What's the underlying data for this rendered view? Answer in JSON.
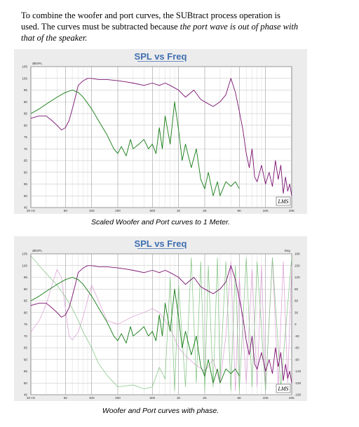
{
  "intro": {
    "line1": "To combine the woofer and port curves,  the SUBtract process operation is",
    "line2a": "used.  The curves must be subtracted because ",
    "line2b": "the port wave is out of phase with",
    "line3": "that of the speaker."
  },
  "chart_data": [
    {
      "type": "line",
      "title": "SPL vs Freq",
      "ylabel": "dBSPL",
      "xscale": "log",
      "xlim": [
        20,
        20000
      ],
      "ylim": [
        45,
        105
      ],
      "grid": true,
      "x_ticks": [
        20,
        50,
        100,
        200,
        500,
        1000,
        2000,
        5000,
        10000,
        20000
      ],
      "x_tick_labels": [
        "20 Hz",
        "50",
        "100",
        "200",
        "500",
        "1K",
        "2K",
        "5K",
        "10K",
        "20K"
      ],
      "y_ticks": [
        45,
        50,
        55,
        60,
        65,
        70,
        75,
        80,
        85,
        90,
        95,
        100,
        105
      ],
      "watermark": "LMS",
      "caption": "Scaled Woofer and Port curves to 1 Meter.",
      "series": [
        {
          "color": "#7a1070",
          "x": [
            20,
            25,
            30,
            35,
            40,
            45,
            50,
            55,
            60,
            65,
            70,
            80,
            90,
            100,
            120,
            150,
            200,
            250,
            300,
            400,
            500,
            600,
            700,
            800,
            1000,
            1200,
            1500,
            1800,
            2000,
            2500,
            3000,
            3500,
            4000,
            4500,
            5000,
            5500,
            6000,
            6500,
            7000,
            7500,
            8000,
            9000,
            10000,
            11000,
            12000,
            13000,
            14000,
            15000,
            16000,
            17000,
            18000,
            19000,
            20000
          ],
          "y": [
            83,
            84,
            84,
            82,
            80,
            78,
            79,
            82,
            87,
            92,
            97,
            99,
            100,
            100,
            99.5,
            99.5,
            99,
            98.5,
            98,
            97,
            98,
            97,
            98,
            97,
            95,
            92,
            95,
            91,
            90,
            88,
            90,
            93,
            100,
            94,
            86,
            78,
            68,
            62,
            70,
            58,
            56,
            63,
            55,
            60,
            54,
            65,
            57,
            63,
            51,
            58,
            52,
            55,
            50
          ]
        },
        {
          "color": "#137c13",
          "x": [
            20,
            25,
            30,
            40,
            50,
            60,
            70,
            80,
            100,
            120,
            150,
            180,
            200,
            220,
            250,
            280,
            300,
            350,
            400,
            450,
            500,
            550,
            600,
            650,
            700,
            800,
            900,
            1000,
            1100,
            1200,
            1400,
            1600,
            1800,
            2000,
            2200,
            2500,
            2800,
            3000,
            3500,
            4000,
            4500,
            5000
          ],
          "y": [
            85,
            87,
            89,
            92,
            94,
            95,
            94,
            92,
            87,
            82,
            76,
            70,
            68,
            71,
            67,
            74,
            70,
            72,
            74,
            70,
            72,
            68,
            79,
            70,
            84,
            72,
            90,
            78,
            65,
            72,
            62,
            70,
            57,
            53,
            60,
            50,
            56,
            50,
            56,
            54,
            56,
            53
          ]
        }
      ]
    },
    {
      "type": "line",
      "title": "SPL vs Freq",
      "ylabel": "dBSPL",
      "y2label": "Deg",
      "xscale": "log",
      "xlim": [
        20,
        20000
      ],
      "ylim": [
        45,
        105
      ],
      "y2lim": [
        -180,
        180
      ],
      "grid": true,
      "x_ticks": [
        20,
        50,
        100,
        200,
        500,
        1000,
        2000,
        5000,
        10000,
        20000
      ],
      "x_tick_labels": [
        "20 Hz",
        "50",
        "100",
        "200",
        "500",
        "1K",
        "2K",
        "5K",
        "10K",
        "20K"
      ],
      "y_ticks": [
        45,
        50,
        55,
        60,
        65,
        70,
        75,
        80,
        85,
        90,
        95,
        100,
        105
      ],
      "y2_ticks": [
        180,
        150,
        120,
        90,
        60,
        30,
        0,
        -30,
        -60,
        -90,
        -120,
        -150,
        -180
      ],
      "y2_tick_labels": [
        "180",
        "150",
        "120",
        "90",
        "60",
        "30",
        "0",
        "-30",
        "-60",
        "-90",
        "-120",
        "-150",
        "-180"
      ],
      "watermark": "LMS",
      "caption": "Woofer and Port curves with phase.",
      "series": [
        {
          "color": "#7a1070",
          "x": [
            20,
            25,
            30,
            35,
            40,
            45,
            50,
            55,
            60,
            65,
            70,
            80,
            90,
            100,
            120,
            150,
            200,
            250,
            300,
            400,
            500,
            600,
            700,
            800,
            1000,
            1200,
            1500,
            1800,
            2000,
            2500,
            3000,
            3500,
            4000,
            4500,
            5000,
            5500,
            6000,
            6500,
            7000,
            7500,
            8000,
            9000,
            10000,
            11000,
            12000,
            13000,
            14000,
            15000,
            16000,
            17000,
            18000,
            19000,
            20000
          ],
          "y": [
            83,
            84,
            84,
            82,
            80,
            78,
            79,
            82,
            87,
            92,
            97,
            99,
            100,
            100,
            99.5,
            99.5,
            99,
            98.5,
            98,
            97,
            98,
            97,
            98,
            97,
            95,
            92,
            95,
            91,
            90,
            88,
            90,
            93,
            100,
            94,
            86,
            78,
            68,
            62,
            70,
            58,
            56,
            63,
            55,
            60,
            54,
            65,
            57,
            63,
            51,
            58,
            52,
            55,
            50
          ]
        },
        {
          "color": "#137c13",
          "x": [
            20,
            25,
            30,
            40,
            50,
            60,
            70,
            80,
            100,
            120,
            150,
            180,
            200,
            220,
            250,
            280,
            300,
            350,
            400,
            450,
            500,
            550,
            600,
            650,
            700,
            800,
            900,
            1000,
            1100,
            1200,
            1400,
            1600,
            1800,
            2000,
            2200,
            2500,
            2800,
            3000,
            3500,
            4000,
            4500,
            5000
          ],
          "y": [
            85,
            87,
            89,
            92,
            94,
            95,
            94,
            92,
            87,
            82,
            76,
            70,
            68,
            71,
            67,
            74,
            70,
            72,
            74,
            70,
            72,
            68,
            79,
            70,
            84,
            72,
            90,
            78,
            65,
            72,
            62,
            70,
            57,
            53,
            60,
            50,
            56,
            50,
            56,
            54,
            56,
            53
          ]
        },
        {
          "color": "#d99ad3",
          "axis": "y2",
          "x": [
            20,
            25,
            30,
            35,
            40,
            45,
            50,
            55,
            60,
            70,
            80,
            100,
            120,
            150,
            200,
            300,
            400,
            500,
            600,
            700,
            800,
            1000,
            1200,
            1500,
            2000,
            2500,
            3000,
            3500,
            4000,
            4500,
            5000,
            6000,
            7000,
            8000,
            9000,
            10000,
            12000,
            14000,
            16000,
            18000,
            20000
          ],
          "y": [
            -20,
            10,
            50,
            100,
            140,
            120,
            40,
            -30,
            -40,
            -20,
            20,
            100,
            60,
            10,
            0,
            20,
            30,
            40,
            30,
            10,
            -10,
            -60,
            -80,
            -100,
            -120,
            -90,
            -150,
            -30,
            160,
            -170,
            120,
            -150,
            140,
            -160,
            150,
            -170,
            170,
            -160,
            160,
            -150,
            150
          ]
        },
        {
          "color": "#7dc27d",
          "axis": "y2",
          "x": [
            20,
            25,
            30,
            40,
            50,
            60,
            70,
            80,
            100,
            120,
            150,
            200,
            300,
            400,
            500,
            600,
            700,
            800,
            900,
            1000,
            1200,
            1400,
            1600,
            1800,
            2000,
            2200,
            2500,
            2800,
            3000,
            3500,
            4000,
            4500,
            5000,
            6000,
            7000,
            8000,
            10000,
            12000,
            15000,
            20000
          ],
          "y": [
            175,
            150,
            130,
            100,
            70,
            40,
            10,
            -20,
            -60,
            -100,
            -130,
            -160,
            -155,
            -165,
            -160,
            -110,
            -140,
            120,
            -170,
            100,
            -160,
            170,
            -150,
            160,
            -170,
            150,
            -160,
            170,
            -140,
            160,
            -170,
            150,
            -170,
            170,
            -160,
            160,
            -170,
            170,
            -160,
            170
          ]
        }
      ]
    }
  ]
}
